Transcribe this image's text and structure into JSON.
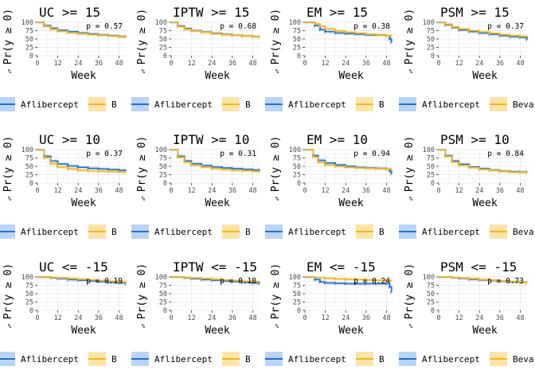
{
  "figure": {
    "colors": {
      "aflibercept": "#1a6fd6",
      "bevacizumab": "#f2b51e",
      "grid": "#ebebeb",
      "axis": "#333333"
    },
    "legend_labels": {
      "Aflibercept": "Aflibercept",
      "B_truncated": "B",
      "Beva_truncated": "Beva"
    }
  },
  "chart_data": [
    {
      "type": "line",
      "title": "UC >= 15",
      "ylabel": "Pr(y ≥ 0)",
      "xlabel": "Week",
      "pvalue": "p = 0.57",
      "xticks": [
        "0",
        "12",
        "24",
        "36",
        "48"
      ],
      "yticks": [
        "100",
        "75",
        "50",
        "25",
        "0"
      ],
      "xlim": [
        0,
        52
      ],
      "ylim": [
        0,
        100
      ],
      "grid": true,
      "legend": {
        "items": [
          "Aflibercept",
          "B"
        ],
        "placement": "bottom"
      },
      "series": [
        {
          "name": "Aflibercept",
          "x": [
            0,
            4,
            8,
            12,
            18,
            24,
            30,
            36,
            42,
            48,
            52
          ],
          "y": [
            100,
            90,
            82,
            76,
            72,
            68,
            65,
            62,
            60,
            58,
            56
          ]
        },
        {
          "name": "B",
          "x": [
            0,
            4,
            8,
            12,
            18,
            24,
            30,
            36,
            42,
            48,
            52
          ],
          "y": [
            100,
            88,
            79,
            73,
            69,
            66,
            63,
            61,
            59,
            57,
            56
          ]
        }
      ]
    },
    {
      "type": "line",
      "title": "IPTW >= 15",
      "ylabel": "Pr(y ≥ 0)",
      "xlabel": "Week",
      "pvalue": "p = 0.68",
      "xticks": [
        "0",
        "12",
        "24",
        "36",
        "48"
      ],
      "yticks": [
        "100",
        "75",
        "50",
        "25",
        "0"
      ],
      "xlim": [
        0,
        52
      ],
      "ylim": [
        0,
        100
      ],
      "grid": true,
      "legend": {
        "items": [
          "Aflibercept",
          "B"
        ],
        "placement": "bottom"
      },
      "series": [
        {
          "name": "Aflibercept",
          "x": [
            0,
            4,
            8,
            12,
            18,
            24,
            30,
            36,
            42,
            48,
            52
          ],
          "y": [
            100,
            89,
            81,
            75,
            71,
            67,
            64,
            61,
            59,
            57,
            55
          ]
        },
        {
          "name": "B",
          "x": [
            0,
            4,
            8,
            12,
            18,
            24,
            30,
            36,
            42,
            48,
            52
          ],
          "y": [
            100,
            87,
            79,
            74,
            70,
            66,
            63,
            61,
            59,
            57,
            55
          ]
        }
      ]
    },
    {
      "type": "line",
      "title": "EM >= 15",
      "ylabel": "Pr(y ≥ 0)",
      "xlabel": "Week",
      "pvalue": "p = 0.38",
      "xticks": [
        "0",
        "12",
        "24",
        "36",
        "48"
      ],
      "yticks": [
        "100",
        "75",
        "50",
        "25",
        "0"
      ],
      "xlim": [
        0,
        52
      ],
      "ylim": [
        0,
        100
      ],
      "grid": true,
      "legend": {
        "items": [
          "Aflibercept",
          "B"
        ],
        "placement": "bottom"
      },
      "series": [
        {
          "name": "Aflibercept",
          "x": [
            0,
            6,
            9,
            12,
            18,
            24,
            30,
            36,
            42,
            48,
            50,
            51
          ],
          "y": [
            100,
            90,
            78,
            72,
            68,
            66,
            64,
            62,
            62,
            60,
            50,
            40
          ]
        },
        {
          "name": "B",
          "x": [
            0,
            6,
            9,
            12,
            18,
            24,
            30,
            36,
            42,
            48,
            51
          ],
          "y": [
            100,
            95,
            88,
            80,
            74,
            70,
            67,
            64,
            62,
            60,
            58
          ]
        }
      ]
    },
    {
      "type": "line",
      "title": "PSM >= 15",
      "ylabel": "Pr(y ≥ 0)",
      "xlabel": "Week",
      "pvalue": "p = 0.37",
      "xticks": [
        "0",
        "12",
        "24",
        "36",
        "48"
      ],
      "yticks": [
        "100",
        "75",
        "50",
        "25",
        "0"
      ],
      "xlim": [
        0,
        52
      ],
      "ylim": [
        0,
        100
      ],
      "grid": true,
      "legend": {
        "items": [
          "Aflibercept",
          "Beva"
        ],
        "placement": "bottom"
      },
      "series": [
        {
          "name": "Aflibercept",
          "x": [
            0,
            4,
            8,
            12,
            18,
            24,
            30,
            36,
            42,
            48,
            52
          ],
          "y": [
            100,
            92,
            84,
            77,
            72,
            68,
            64,
            60,
            57,
            55,
            48
          ]
        },
        {
          "name": "Beva",
          "x": [
            0,
            4,
            8,
            12,
            18,
            24,
            30,
            36,
            42,
            48,
            52
          ],
          "y": [
            100,
            94,
            86,
            80,
            75,
            71,
            67,
            63,
            60,
            58,
            56
          ]
        }
      ]
    },
    {
      "type": "line",
      "title": "UC >= 10",
      "ylabel": "Pr(y ≥ 0)",
      "xlabel": "Week",
      "pvalue": "p = 0.37",
      "xticks": [
        "0",
        "12",
        "24",
        "36",
        "48"
      ],
      "yticks": [
        "100",
        "75",
        "50",
        "25",
        "0"
      ],
      "xlim": [
        0,
        52
      ],
      "ylim": [
        0,
        100
      ],
      "grid": true,
      "legend": {
        "items": [
          "Aflibercept",
          "B"
        ],
        "placement": "bottom"
      },
      "series": [
        {
          "name": "Aflibercept",
          "x": [
            0,
            4,
            8,
            12,
            18,
            24,
            30,
            36,
            42,
            48,
            52
          ],
          "y": [
            100,
            80,
            66,
            57,
            51,
            47,
            44,
            42,
            40,
            38,
            37
          ]
        },
        {
          "name": "B",
          "x": [
            0,
            4,
            8,
            12,
            18,
            24,
            30,
            36,
            42,
            48,
            52
          ],
          "y": [
            100,
            75,
            58,
            48,
            42,
            38,
            36,
            35,
            34,
            33,
            32
          ]
        }
      ]
    },
    {
      "type": "line",
      "title": "IPTW >= 10",
      "ylabel": "Pr(y ≥ 0)",
      "xlabel": "Week",
      "pvalue": "p = 0.31",
      "xticks": [
        "0",
        "12",
        "24",
        "36",
        "48"
      ],
      "yticks": [
        "100",
        "75",
        "50",
        "25",
        "0"
      ],
      "xlim": [
        0,
        52
      ],
      "ylim": [
        0,
        100
      ],
      "grid": true,
      "legend": {
        "items": [
          "Aflibercept",
          "B"
        ],
        "placement": "bottom"
      },
      "series": [
        {
          "name": "Aflibercept",
          "x": [
            0,
            4,
            8,
            12,
            18,
            24,
            30,
            36,
            42,
            48,
            52
          ],
          "y": [
            100,
            80,
            66,
            58,
            52,
            48,
            45,
            43,
            41,
            39,
            38
          ]
        },
        {
          "name": "B",
          "x": [
            0,
            4,
            8,
            12,
            18,
            24,
            30,
            36,
            42,
            48,
            52
          ],
          "y": [
            100,
            77,
            62,
            53,
            47,
            43,
            40,
            38,
            37,
            35,
            34
          ]
        }
      ]
    },
    {
      "type": "line",
      "title": "EM >= 10",
      "ylabel": "Pr(y ≥ 0)",
      "xlabel": "Week",
      "pvalue": "p = 0.94",
      "xticks": [
        "0",
        "12",
        "24",
        "36",
        "48"
      ],
      "yticks": [
        "100",
        "75",
        "50",
        "25",
        "0"
      ],
      "xlim": [
        0,
        52
      ],
      "ylim": [
        0,
        100
      ],
      "grid": true,
      "legend": {
        "items": [
          "Aflibercept",
          "B"
        ],
        "placement": "bottom"
      },
      "series": [
        {
          "name": "Aflibercept",
          "x": [
            0,
            5,
            8,
            12,
            18,
            24,
            30,
            36,
            42,
            48,
            50,
            51
          ],
          "y": [
            100,
            82,
            68,
            60,
            54,
            50,
            47,
            45,
            44,
            42,
            36,
            28
          ]
        },
        {
          "name": "B",
          "x": [
            0,
            5,
            8,
            12,
            18,
            24,
            30,
            36,
            42,
            48,
            51
          ],
          "y": [
            100,
            78,
            62,
            54,
            50,
            47,
            45,
            44,
            43,
            42,
            41
          ]
        }
      ]
    },
    {
      "type": "line",
      "title": "PSM >= 10",
      "ylabel": "Pr(y ≥ 0)",
      "xlabel": "Week",
      "pvalue": "p = 0.84",
      "xticks": [
        "0",
        "12",
        "24",
        "36",
        "48"
      ],
      "yticks": [
        "100",
        "75",
        "50",
        "25",
        "0"
      ],
      "xlim": [
        0,
        52
      ],
      "ylim": [
        0,
        100
      ],
      "grid": true,
      "legend": {
        "items": [
          "Aflibercept",
          "Beva"
        ],
        "placement": "bottom"
      },
      "series": [
        {
          "name": "Aflibercept",
          "x": [
            0,
            4,
            8,
            12,
            18,
            24,
            30,
            36,
            42,
            48,
            52
          ],
          "y": [
            100,
            82,
            66,
            56,
            48,
            43,
            39,
            36,
            34,
            33,
            32
          ]
        },
        {
          "name": "Beva",
          "x": [
            0,
            4,
            8,
            12,
            18,
            24,
            30,
            36,
            42,
            48,
            52
          ],
          "y": [
            100,
            80,
            63,
            53,
            46,
            41,
            38,
            35,
            33,
            32,
            31
          ]
        }
      ]
    },
    {
      "type": "line",
      "title": "UC <= -15",
      "ylabel": "Pr(y ≥ 0)",
      "xlabel": "Week",
      "pvalue": "p = 0.19",
      "xticks": [
        "0",
        "12",
        "24",
        "36",
        "48"
      ],
      "yticks": [
        "100",
        "75",
        "50",
        "25",
        "0"
      ],
      "xlim": [
        0,
        52
      ],
      "ylim": [
        0,
        100
      ],
      "grid": true,
      "legend": {
        "items": [
          "Aflibercept",
          "B"
        ],
        "placement": "bottom"
      },
      "series": [
        {
          "name": "Aflibercept",
          "x": [
            0,
            8,
            12,
            18,
            24,
            30,
            36,
            42,
            48,
            52
          ],
          "y": [
            100,
            97,
            95,
            92,
            90,
            88,
            86,
            84,
            82,
            80
          ]
        },
        {
          "name": "B",
          "x": [
            0,
            8,
            12,
            18,
            24,
            30,
            36,
            42,
            48,
            52
          ],
          "y": [
            100,
            98,
            97,
            95,
            93,
            91,
            89,
            87,
            85,
            84
          ]
        }
      ]
    },
    {
      "type": "line",
      "title": "IPTW <= -15",
      "ylabel": "Pr(y ≥ 0)",
      "xlabel": "Week",
      "pvalue": "p = 0.18",
      "xticks": [
        "0",
        "12",
        "24",
        "36",
        "48"
      ],
      "yticks": [
        "100",
        "75",
        "50",
        "25",
        "0"
      ],
      "xlim": [
        0,
        52
      ],
      "ylim": [
        0,
        100
      ],
      "grid": true,
      "legend": {
        "items": [
          "Aflibercept",
          "B"
        ],
        "placement": "bottom"
      },
      "series": [
        {
          "name": "Aflibercept",
          "x": [
            0,
            8,
            12,
            18,
            24,
            30,
            36,
            42,
            48,
            52
          ],
          "y": [
            100,
            97,
            95,
            92,
            90,
            88,
            86,
            84,
            82,
            80
          ]
        },
        {
          "name": "B",
          "x": [
            0,
            8,
            12,
            18,
            24,
            30,
            36,
            42,
            48,
            52
          ],
          "y": [
            100,
            98,
            97,
            95,
            93,
            91,
            89,
            87,
            86,
            85
          ]
        }
      ]
    },
    {
      "type": "line",
      "title": "EM <= -15",
      "ylabel": "Pr(y ≥ 0)",
      "xlabel": "Week",
      "pvalue": "p = 0.24",
      "xticks": [
        "0",
        "12",
        "24",
        "36",
        "48"
      ],
      "yticks": [
        "100",
        "75",
        "50",
        "25",
        "0"
      ],
      "xlim": [
        0,
        52
      ],
      "ylim": [
        0,
        100
      ],
      "grid": true,
      "legend": {
        "items": [
          "Aflibercept",
          "B"
        ],
        "placement": "bottom"
      },
      "series": [
        {
          "name": "Aflibercept",
          "x": [
            0,
            6,
            9,
            12,
            18,
            24,
            30,
            36,
            42,
            48,
            50,
            51
          ],
          "y": [
            100,
            92,
            85,
            82,
            81,
            80,
            80,
            80,
            80,
            80,
            70,
            55
          ]
        },
        {
          "name": "B",
          "x": [
            0,
            6,
            12,
            18,
            24,
            30,
            36,
            42,
            48,
            51
          ],
          "y": [
            100,
            98,
            96,
            94,
            93,
            92,
            91,
            90,
            89,
            88
          ]
        }
      ]
    },
    {
      "type": "line",
      "title": "PSM <= -15",
      "ylabel": "Pr(y ≥ 0)",
      "xlabel": "Week",
      "pvalue": "p = 0.73",
      "xticks": [
        "0",
        "12",
        "24",
        "36",
        "48"
      ],
      "yticks": [
        "100",
        "75",
        "50",
        "25",
        "0"
      ],
      "xlim": [
        0,
        52
      ],
      "ylim": [
        0,
        100
      ],
      "grid": true,
      "legend": {
        "items": [
          "Aflibercept",
          "Beva"
        ],
        "placement": "bottom"
      },
      "series": [
        {
          "name": "Aflibercept",
          "x": [
            0,
            8,
            12,
            18,
            24,
            30,
            36,
            42,
            48,
            52
          ],
          "y": [
            100,
            98,
            96,
            93,
            91,
            89,
            87,
            85,
            84,
            83
          ]
        },
        {
          "name": "Beva",
          "x": [
            0,
            8,
            12,
            18,
            24,
            30,
            36,
            42,
            48,
            52
          ],
          "y": [
            100,
            98,
            97,
            95,
            92,
            90,
            88,
            86,
            84,
            83
          ]
        }
      ]
    }
  ]
}
